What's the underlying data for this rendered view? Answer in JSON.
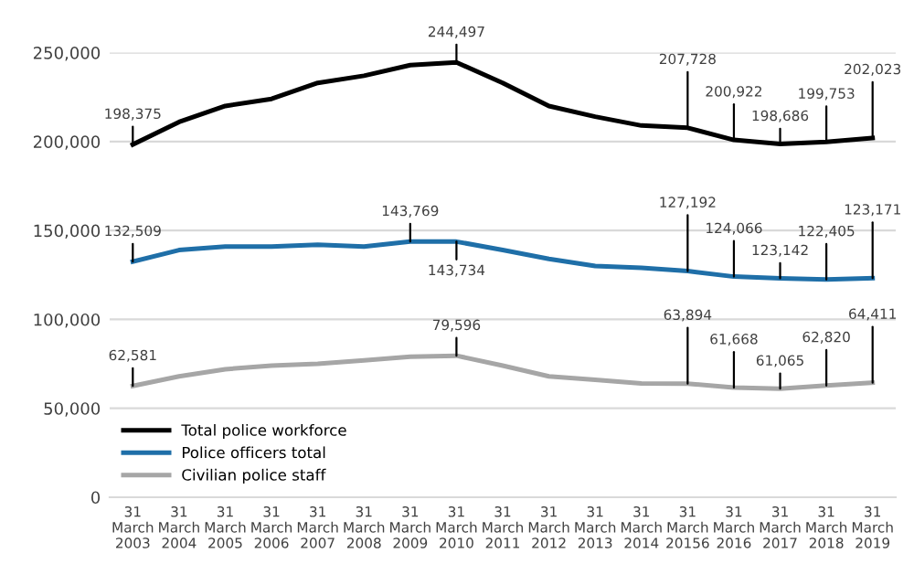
{
  "chart_data": {
    "type": "line",
    "categories": [
      "31 March 2003",
      "31 March 2004",
      "31 March 2005",
      "31 March 2006",
      "31 March 2007",
      "31 March 2008",
      "31 March 2009",
      "31 March 2010",
      "31 March 2011",
      "31 March 2012",
      "31 March 2013",
      "31 March 2014",
      "31 March 20156",
      "31 March 2016",
      "31 March 2017",
      "31 March 2018",
      "31 March 2019"
    ],
    "series": [
      {
        "name": "Total police workforce",
        "color": "#000000",
        "values": [
          198375,
          211000,
          220000,
          224000,
          233000,
          237000,
          243000,
          244497,
          233000,
          220000,
          214000,
          209000,
          207728,
          200922,
          198686,
          199753,
          202023
        ],
        "value_labels": [
          "198,375",
          null,
          null,
          null,
          null,
          null,
          null,
          "244,497",
          null,
          null,
          null,
          null,
          "207,728",
          "200,922",
          "198,686",
          "199,753",
          "202,023"
        ]
      },
      {
        "name": "Police officers total",
        "color": "#1f6fa8",
        "values": [
          132509,
          139000,
          141000,
          141000,
          142000,
          141000,
          143769,
          143734,
          139000,
          134000,
          130000,
          129000,
          127192,
          124066,
          123142,
          122405,
          123171
        ],
        "value_labels": [
          "132,509",
          null,
          null,
          null,
          null,
          null,
          "143,769",
          "143,734",
          null,
          null,
          null,
          null,
          "127,192",
          "124,066",
          "123,142",
          "122,405",
          "123,171"
        ]
      },
      {
        "name": "Civilian police staff",
        "color": "#a6a6a6",
        "values": [
          62581,
          68000,
          72000,
          74000,
          75000,
          77000,
          79000,
          79596,
          74000,
          68000,
          66000,
          64000,
          63894,
          61668,
          61065,
          62820,
          64411
        ],
        "value_labels": [
          "62,581",
          null,
          null,
          null,
          null,
          null,
          null,
          "79,596",
          null,
          null,
          null,
          null,
          "63,894",
          "61,668",
          "61,065",
          "62,820",
          "64,411"
        ]
      }
    ],
    "ylim": [
      0,
      250000
    ],
    "yticks": [
      {
        "value": 0,
        "label": "0"
      },
      {
        "value": 50000,
        "label": "50,000"
      },
      {
        "value": 100000,
        "label": "100,000"
      },
      {
        "value": 150000,
        "label": "150,000"
      },
      {
        "value": 200000,
        "label": "200,000"
      },
      {
        "value": 250000,
        "label": "250,000"
      }
    ],
    "grid": "y",
    "legend": "bottom left",
    "marker": "none",
    "line_style": "solid"
  }
}
